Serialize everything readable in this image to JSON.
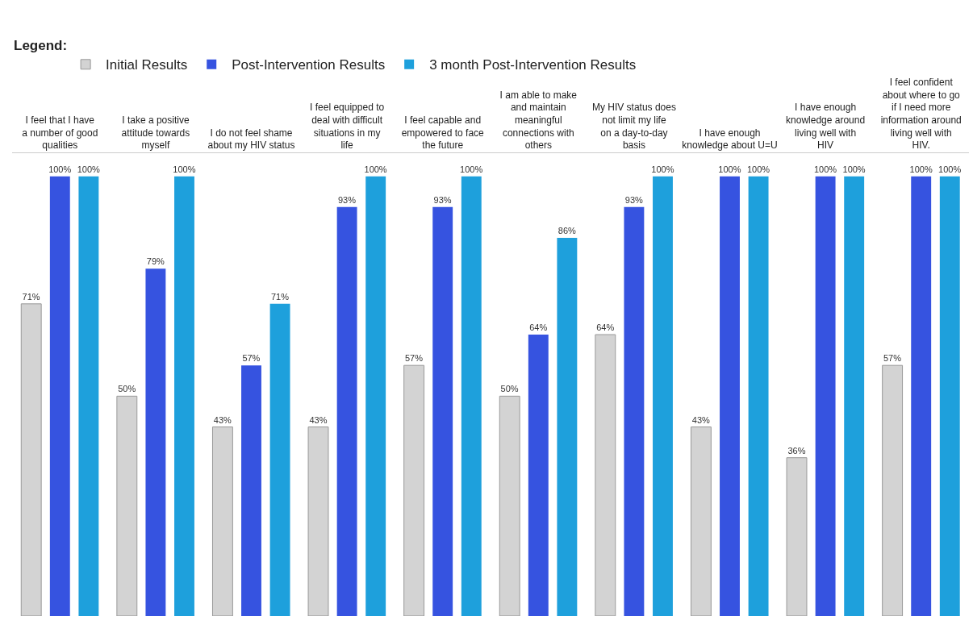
{
  "chart_data": {
    "type": "bar",
    "legend_title": "Legend:",
    "legend": "top left",
    "grid": false,
    "categories": [
      "I feel that I have a number of good qualities",
      "I take a positive attitude towards myself",
      "I do not feel shame about my HIV status",
      "I feel equipped to deal with difficult situations in my life",
      "I feel capable and empowered to face the future",
      "I am able to make and maintain meaningful connections with others",
      "My HIV status does not limit my life on a day-to-day basis",
      "I have enough knowledge about U=U",
      "I have enough knowledge around living well with HIV",
      "I feel confident about where to go if I need more information around living well with HIV."
    ],
    "series": [
      {
        "name": "Initial Results",
        "color": "#d3d3d3",
        "values": [
          71,
          50,
          43,
          43,
          57,
          50,
          64,
          43,
          36,
          57
        ],
        "value_labels": [
          "71%",
          "50%",
          "43%",
          "43%",
          "57%",
          "50%",
          "64%",
          "43%",
          "36%",
          "57%"
        ]
      },
      {
        "name": "Post-Intervention Results",
        "color": "#3653e0",
        "values": [
          100,
          79,
          57,
          93,
          93,
          64,
          93,
          100,
          100,
          100
        ],
        "value_labels": [
          "100%",
          "79%",
          "57%",
          "93%",
          "93%",
          "64%",
          "93%",
          "100%",
          "100%",
          "100%"
        ]
      },
      {
        "name": "3 month Post-Intervention Results",
        "color": "#1ea0dc",
        "values": [
          100,
          100,
          71,
          100,
          100,
          86,
          100,
          100,
          100,
          100
        ],
        "value_labels": [
          "100%",
          "100%",
          "71%",
          "100%",
          "100%",
          "86%",
          "100%",
          "100%",
          "100%",
          "100%"
        ]
      }
    ]
  }
}
